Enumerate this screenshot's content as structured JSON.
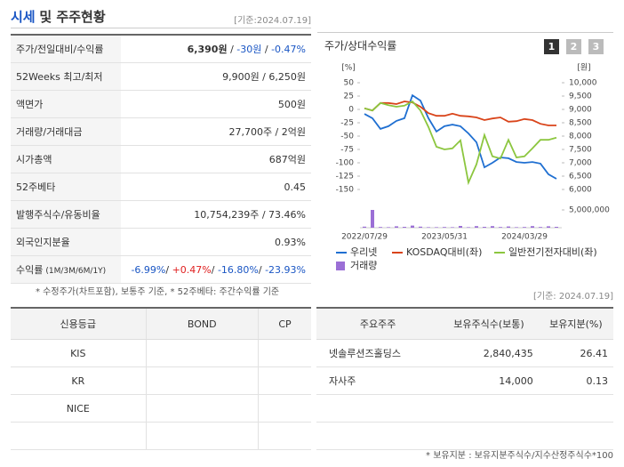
{
  "header": {
    "title_main": "시세",
    "title_rest": "및 주주현황",
    "date": "[기준:2024.07.19]"
  },
  "price_table": {
    "rows": [
      {
        "label": "주가/전일대비/수익률",
        "value": [
          {
            "text": "6,390원",
            "bold": true
          },
          {
            "text": " / "
          },
          {
            "text": "-30원",
            "color": "#1a56c4"
          },
          {
            "text": " / "
          },
          {
            "text": "-0.47%",
            "color": "#1a56c4"
          }
        ]
      },
      {
        "label": "52Weeks 최고/최저",
        "value": [
          {
            "text": "9,900원 / 6,250원"
          }
        ]
      },
      {
        "label": "액면가",
        "value": [
          {
            "text": "500원"
          }
        ]
      },
      {
        "label": "거래량/거래대금",
        "value": [
          {
            "text": "27,700주 / 2억원"
          }
        ]
      },
      {
        "label": "시가총액",
        "value": [
          {
            "text": "687억원"
          }
        ]
      },
      {
        "label": "52주베타",
        "value": [
          {
            "text": "0.45"
          }
        ]
      },
      {
        "label": "발행주식수/유동비율",
        "value": [
          {
            "text": "10,754,239주 / 73.46%"
          }
        ]
      },
      {
        "label": "외국인지분율",
        "value": [
          {
            "text": "0.93%"
          }
        ]
      },
      {
        "label": "수익률",
        "label_note": "(1M/3M/6M/1Y)",
        "value": [
          {
            "text": "-6.99%",
            "color": "#1a56c4"
          },
          {
            "text": "/ "
          },
          {
            "text": "+0.47%",
            "color": "#e02020"
          },
          {
            "text": "/ "
          },
          {
            "text": "-16.80%",
            "color": "#1a56c4"
          },
          {
            "text": "/ "
          },
          {
            "text": "-23.93%",
            "color": "#1a56c4"
          }
        ]
      }
    ],
    "footnote": "* 수정주가(차트포함), 보통주 기준, * 52주베타: 주간수익률 기준"
  },
  "chart_data": {
    "type": "line",
    "title": "주가/상대수익률",
    "buttons": [
      "1",
      "2",
      "3"
    ],
    "y_unit": "[%]",
    "y2_unit": "[원]",
    "categories": [
      "2022/07/29",
      null,
      null,
      null,
      null,
      null,
      null,
      null,
      null,
      null,
      "2023/05/31",
      null,
      null,
      null,
      null,
      null,
      null,
      null,
      null,
      null,
      "2024/03/29",
      null,
      null,
      null,
      null
    ],
    "ylim": [
      -150,
      50
    ],
    "yticks": [
      50,
      25,
      0,
      -25,
      -50,
      -75,
      -100,
      -125,
      -150
    ],
    "y2lim": [
      6000,
      10000
    ],
    "y2ticks": [
      {
        "value": 10000,
        "label": "10,000"
      },
      {
        "value": 9500,
        "label": "9,500"
      },
      {
        "value": 9000,
        "label": "9,000"
      },
      {
        "value": 8500,
        "label": "8,500"
      },
      {
        "value": 8000,
        "label": "8,000"
      },
      {
        "value": 7500,
        "label": "7,500"
      },
      {
        "value": 7000,
        "label": "7,000"
      },
      {
        "value": 6500,
        "label": "6,500"
      },
      {
        "value": 6000,
        "label": "6,000"
      }
    ],
    "y3lim": [
      0,
      5000000
    ],
    "y3ticks": [
      {
        "value": 5000000,
        "label": "5,000,000"
      }
    ],
    "series": [
      {
        "name": "우리넷",
        "color": "#1f6fd1",
        "axis": "y2",
        "values": [
          8830,
          8670,
          8270,
          8370,
          8570,
          8670,
          9530,
          9330,
          8670,
          8170,
          8370,
          8430,
          8370,
          8100,
          7770,
          6830,
          7000,
          7200,
          7170,
          7030,
          7000,
          7030,
          6970,
          6570,
          6400
        ]
      },
      {
        "name": "KOSDAQ대비(좌)",
        "color": "#d9441a",
        "values": [
          2,
          -2,
          12,
          12,
          10,
          15,
          13,
          5,
          -7,
          -12,
          -12,
          -8,
          -12,
          -13,
          -15,
          -20,
          -17,
          -15,
          -23,
          -22,
          -18,
          -20,
          -27,
          -30,
          -30
        ]
      },
      {
        "name": "일반전기전자대비(좌)",
        "color": "#8cc63f",
        "values": [
          2,
          -2,
          12,
          8,
          5,
          7,
          15,
          -2,
          -33,
          -70,
          -75,
          -73,
          -58,
          -137,
          -103,
          -48,
          -88,
          -92,
          -57,
          -90,
          -88,
          -73,
          -57,
          -57,
          -53
        ]
      },
      {
        "name": "거래량",
        "color": "#9b6fd6",
        "axis": "y3",
        "values": [
          300000,
          5000000,
          200000,
          150000,
          400000,
          250000,
          600000,
          300000,
          150000,
          150000,
          200000,
          150000,
          500000,
          150000,
          450000,
          250000,
          450000,
          200000,
          350000,
          150000,
          200000,
          450000,
          200000,
          400000,
          250000
        ]
      }
    ]
  },
  "credit_table": {
    "headers": [
      "신용등급",
      "BOND",
      "CP"
    ],
    "rows": [
      [
        "KIS"
      ],
      [
        "KR"
      ],
      [
        "NICE"
      ]
    ]
  },
  "holders_date": "[기준: 2024.07.19]",
  "holders_table": {
    "headers": [
      "주요주주",
      "보유주식수(보통)",
      "보유지분(%)"
    ],
    "rows": [
      [
        "넷솔루션즈홀딩스",
        "2,840,435",
        "26.41"
      ],
      [
        "자사주",
        "14,000",
        "0.13"
      ]
    ],
    "footnote": "* 보유지분 : 보유지분주식수/지수산정주식수*100"
  }
}
